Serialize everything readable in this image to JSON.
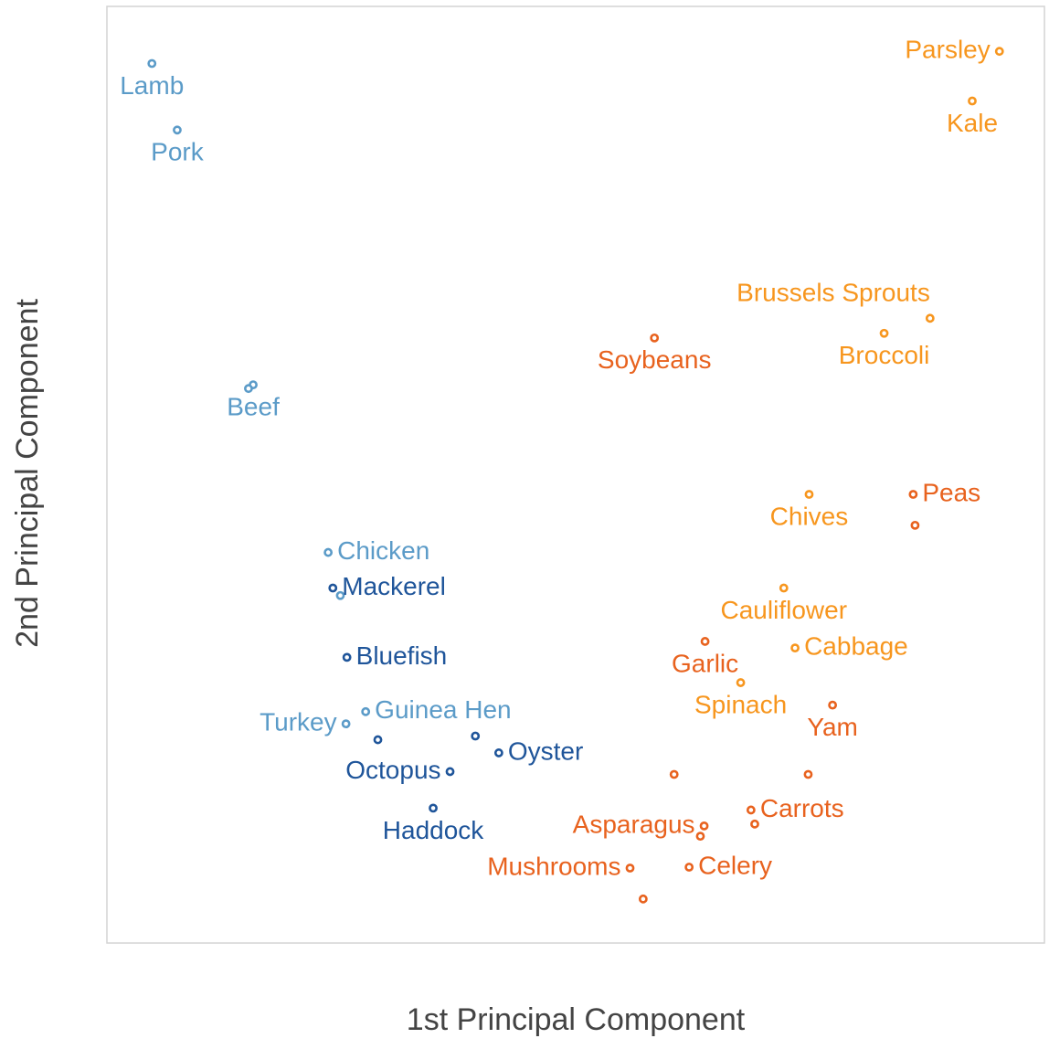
{
  "chart_data": {
    "type": "scatter",
    "x_label": "1st Principal Component",
    "y_label": "2nd Principal Component",
    "xlim": [
      0,
      100
    ],
    "ylim": [
      0,
      100
    ],
    "series": [
      {
        "color": "#5b9bc8",
        "x": [
          4.8,
          7.5,
          15.6,
          15.1,
          23.6,
          24.9,
          25.5,
          27.6
        ],
        "y": [
          93.9,
          86.8,
          59.6,
          59.2,
          41.7,
          37.1,
          23.4,
          24.7
        ],
        "labels": [
          "Lamb",
          "Pork",
          "Beef",
          null,
          "Chicken",
          null,
          "Turkey",
          "Guinea Hen"
        ]
      },
      {
        "color": "#1f559a",
        "x": [
          24.1,
          25.6,
          28.9,
          36.6,
          34.8,
          39.3,
          41.8
        ],
        "y": [
          37.9,
          30.5,
          21.7,
          18.3,
          14.4,
          22.1,
          20.3
        ],
        "labels": [
          "Mackerel",
          "Bluefish",
          null,
          "Octopus",
          "Haddock",
          null,
          "Oyster"
        ]
      },
      {
        "color": "#f7961e",
        "x": [
          95.2,
          92.3,
          87.8,
          82.9,
          74.9,
          72.2,
          73.4,
          67.6
        ],
        "y": [
          95.2,
          89.9,
          66.7,
          65.1,
          47.9,
          37.9,
          31.5,
          27.8
        ],
        "labels": [
          "Parsley",
          "Kale",
          "Brussels Sprouts",
          "Broccoli",
          "Chives",
          "Cauliflower",
          "Cabbage",
          "Spinach"
        ]
      },
      {
        "color": "#e8621e",
        "x": [
          58.4,
          86.0,
          86.2,
          63.8,
          77.4,
          60.5,
          74.8,
          68.7,
          69.1,
          63.7,
          63.3,
          62.1,
          55.8,
          57.2
        ],
        "y": [
          64.6,
          47.9,
          44.6,
          32.2,
          25.4,
          18.0,
          18.0,
          14.2,
          12.7,
          12.5,
          11.4,
          8.1,
          8.0,
          4.7
        ],
        "labels": [
          "Soybeans",
          "Peas",
          null,
          "Garlic",
          "Yam",
          null,
          null,
          "Carrots",
          null,
          "Asparagus",
          null,
          "Celery",
          "Mushrooms",
          null
        ]
      }
    ]
  }
}
